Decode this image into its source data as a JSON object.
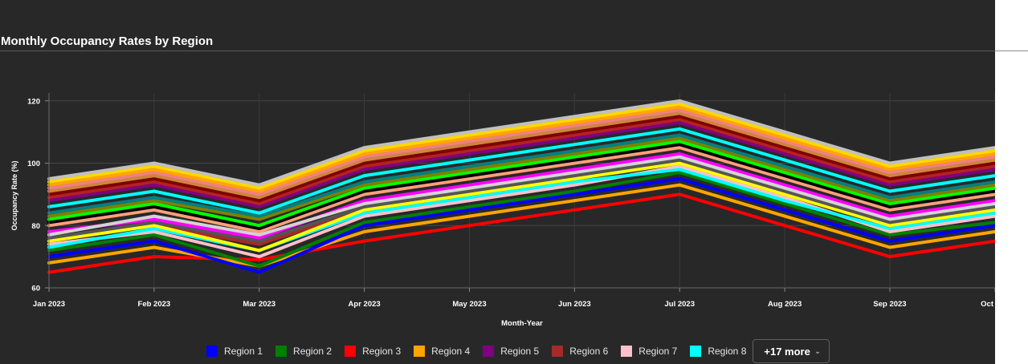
{
  "header": {
    "title": "Monthly Occupancy Rates by Region"
  },
  "legend": {
    "more_label": "+17 more",
    "items": [
      {
        "label": "Region 1",
        "color": "#0000ff"
      },
      {
        "label": "Region 2",
        "color": "#008000"
      },
      {
        "label": "Region 3",
        "color": "#ff0000"
      },
      {
        "label": "Region 4",
        "color": "#ffa500"
      },
      {
        "label": "Region 5",
        "color": "#800080"
      },
      {
        "label": "Region 6",
        "color": "#a52a2a"
      },
      {
        "label": "Region 7",
        "color": "#ffc0cb"
      },
      {
        "label": "Region 8",
        "color": "#00ffff"
      }
    ]
  },
  "chart_data": {
    "type": "line",
    "title": "Monthly Occupancy Rates by Region",
    "xlabel": "Month-Year",
    "ylabel": "Occupancy Rate (%)",
    "ylim": [
      60,
      120
    ],
    "yticks": [
      60,
      80,
      100,
      120
    ],
    "grid": true,
    "legend_position": "bottom",
    "x": [
      "Jan 2023",
      "Feb 2023",
      "Mar 2023",
      "Apr 2023",
      "May 2023",
      "Jun 2023",
      "Jul 2023",
      "Aug 2023",
      "Sep 2023",
      "Oct"
    ],
    "series": [
      {
        "name": "Region 3",
        "color": "#ff0000",
        "values": [
          65,
          70,
          69,
          75,
          80,
          85,
          90,
          80,
          70,
          75
        ]
      },
      {
        "name": "Region 4",
        "color": "#ffa500",
        "values": [
          68,
          73,
          67,
          78,
          83,
          88,
          93,
          83,
          73,
          78
        ]
      },
      {
        "name": "Region 1",
        "color": "#0000ff",
        "values": [
          70,
          75,
          65,
          80,
          85,
          90,
          95,
          85,
          75,
          80
        ]
      },
      {
        "name": "Region 2",
        "color": "#008000",
        "values": [
          72,
          77,
          67,
          81,
          86,
          91,
          97,
          87,
          77,
          81
        ]
      },
      {
        "name": "Region 7",
        "color": "#ffc0cb",
        "values": [
          74,
          78,
          70,
          83,
          88,
          93,
          99,
          89,
          78,
          83
        ]
      },
      {
        "name": "Region 8",
        "color": "#00ffff",
        "values": [
          73,
          79,
          72,
          84,
          89,
          94,
          98,
          88,
          79,
          84
        ]
      },
      {
        "name": "Region 6",
        "color": "#a52a2a",
        "values": [
          75,
          80,
          74,
          85,
          90,
          95,
          100,
          90,
          80,
          85
        ]
      },
      {
        "name": "",
        "color": "#ffff00",
        "values": [
          75,
          80,
          72,
          85,
          90,
          95,
          100,
          90,
          80,
          85
        ]
      },
      {
        "name": "",
        "color": "#555555",
        "values": [
          76,
          81,
          75,
          86,
          91,
          96,
          101,
          91,
          81,
          86
        ]
      },
      {
        "name": "",
        "color": "#ff00ff",
        "values": [
          78,
          82,
          76,
          88,
          93,
          98,
          103,
          93,
          83,
          88
        ]
      },
      {
        "name": "",
        "color": "#d3d3d3",
        "values": [
          77,
          83,
          77,
          87,
          92,
          97,
          102,
          92,
          82,
          87
        ]
      },
      {
        "name": "",
        "color": "#ffa07a",
        "values": [
          80,
          85,
          78,
          90,
          95,
          100,
          105,
          95,
          85,
          90
        ]
      },
      {
        "name": "",
        "color": "#000000",
        "values": [
          81,
          86,
          79,
          91,
          96,
          101,
          106,
          96,
          86,
          91
        ]
      },
      {
        "name": "",
        "color": "#00ff00",
        "values": [
          82,
          87,
          80,
          92,
          97,
          102,
          107,
          97,
          87,
          92
        ]
      },
      {
        "name": "",
        "color": "#808000",
        "values": [
          83,
          88,
          82,
          93,
          98,
          103,
          108,
          98,
          88,
          93
        ]
      },
      {
        "name": "",
        "color": "#008080",
        "values": [
          84,
          89,
          83,
          94,
          99,
          104,
          109,
          99,
          89,
          94
        ]
      },
      {
        "name": "",
        "color": "#00ffff",
        "values": [
          86,
          91,
          84,
          96,
          101,
          106,
          111,
          101,
          91,
          96
        ]
      },
      {
        "name": "",
        "color": "#800080",
        "values": [
          88,
          93,
          86,
          98,
          103,
          108,
          113,
          103,
          93,
          98
        ]
      },
      {
        "name": "",
        "color": "#b22222",
        "values": [
          89,
          94,
          87,
          99,
          104,
          109,
          114,
          104,
          94,
          99
        ]
      },
      {
        "name": "",
        "color": "#800000",
        "values": [
          90,
          95,
          88,
          100,
          105,
          110,
          115,
          105,
          95,
          100
        ]
      },
      {
        "name": "",
        "color": "#cd853f",
        "values": [
          91,
          96,
          89,
          101,
          106,
          111,
          116,
          106,
          96,
          101
        ]
      },
      {
        "name": "",
        "color": "#f08080",
        "values": [
          92,
          97,
          90,
          102,
          107,
          112,
          117,
          107,
          97,
          102
        ]
      },
      {
        "name": "",
        "color": "#ffa500",
        "values": [
          93,
          98,
          91,
          103,
          108,
          113,
          118,
          108,
          98,
          103
        ]
      },
      {
        "name": "",
        "color": "#ffd700",
        "values": [
          94,
          99,
          92,
          104,
          109,
          114,
          119,
          109,
          99,
          104
        ]
      },
      {
        "name": "",
        "color": "#c0c0c0",
        "values": [
          95,
          100,
          93,
          105,
          110,
          115,
          120,
          110,
          100,
          105
        ]
      }
    ]
  }
}
